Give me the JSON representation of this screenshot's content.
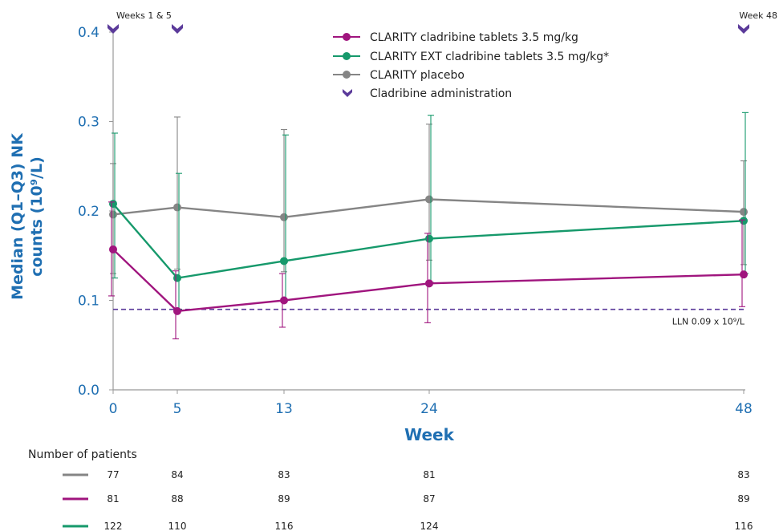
{
  "chart_data": {
    "type": "line",
    "xlabel": "Week",
    "ylabel_line1": "Median (Q1–Q3) NK",
    "ylabel_line2": "counts (10⁹/L)",
    "x": [
      0,
      5,
      13,
      24,
      48
    ],
    "x_tick_labels": [
      "0",
      "5",
      "13",
      "24",
      "48"
    ],
    "ylim": [
      0.0,
      0.4
    ],
    "y_ticks": [
      "0.0",
      "0.1",
      "0.2",
      "0.3",
      "0.4"
    ],
    "grid": false,
    "legend_position": "top-right",
    "series": [
      {
        "name": "CLARITY cladribine tablets 3.5 mg/kg",
        "color": "#a0157e",
        "median": [
          0.157,
          0.088,
          0.1,
          0.119,
          0.129
        ],
        "q1": [
          0.105,
          0.057,
          0.07,
          0.075,
          0.093
        ],
        "q3": [
          0.21,
          0.133,
          0.13,
          0.175,
          0.19
        ]
      },
      {
        "name": "CLARITY EXT cladribine tablets 3.5 mg/kg*",
        "color": "#16996b",
        "median": [
          0.208,
          0.125,
          0.144,
          0.169,
          0.189
        ],
        "q1": [
          0.125,
          0.09,
          0.1,
          0.12,
          0.13
        ],
        "q3": [
          0.287,
          0.242,
          0.285,
          0.307,
          0.31
        ]
      },
      {
        "name": "CLARITY placebo",
        "color": "#858585",
        "median": [
          0.196,
          0.204,
          0.193,
          0.213,
          0.199
        ],
        "q1": [
          0.13,
          0.135,
          0.132,
          0.145,
          0.14
        ],
        "q3": [
          0.253,
          0.305,
          0.291,
          0.297,
          0.256
        ]
      }
    ],
    "reference_line": {
      "value": 0.09,
      "label": "LLN 0.09 x 10⁹/L",
      "color": "#5b3a9a"
    },
    "administration": {
      "legend_label": "Cladribine administration",
      "color": "#5b3a9a",
      "markers_at_weeks": [
        0,
        5,
        48
      ],
      "labels": [
        "Weeks 1 & 5",
        "Week 48"
      ]
    },
    "patients": {
      "title": "Number of patients",
      "rows": [
        {
          "color": "#858585",
          "counts": [
            "77",
            "84",
            "83",
            "81",
            "83"
          ]
        },
        {
          "color": "#a0157e",
          "counts": [
            "81",
            "88",
            "89",
            "87",
            "89"
          ]
        },
        {
          "color": "#16996b",
          "counts": [
            "122",
            "110",
            "116",
            "124",
            "116"
          ]
        }
      ]
    }
  }
}
